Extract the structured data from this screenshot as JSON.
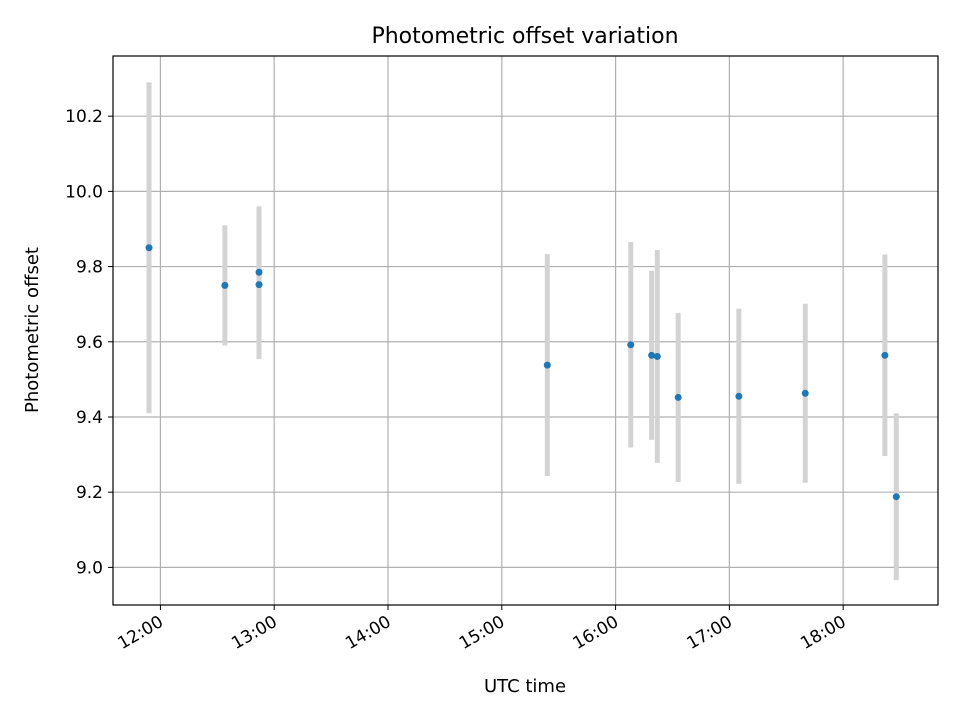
{
  "chart_data": {
    "type": "scatter",
    "title": "Photometric offset variation",
    "xlabel": "UTC time",
    "ylabel": "Photometric offset",
    "x_ticks": [
      "12:00",
      "13:00",
      "14:00",
      "15:00",
      "16:00",
      "17:00",
      "18:00"
    ],
    "y_ticks": [
      "9.0",
      "9.2",
      "9.4",
      "9.6",
      "9.8",
      "10.0",
      "10.2"
    ],
    "xlim": [
      "11:35",
      "18:50"
    ],
    "ylim": [
      8.9,
      10.36
    ],
    "grid": true,
    "colors": {
      "points": "#1f77b4",
      "errorbars": "#d3d3d3"
    },
    "points": [
      {
        "x": "11:54",
        "y": 9.85,
        "err": 0.44
      },
      {
        "x": "12:34",
        "y": 9.75,
        "err": 0.16
      },
      {
        "x": "12:52",
        "y": 9.785,
        "err": 0.175
      },
      {
        "x": "12:52",
        "y": 9.752,
        "err": 0.198
      },
      {
        "x": "15:24",
        "y": 9.538,
        "err": 0.295
      },
      {
        "x": "16:08",
        "y": 9.592,
        "err": 0.273
      },
      {
        "x": "16:19",
        "y": 9.564,
        "err": 0.225
      },
      {
        "x": "16:22",
        "y": 9.561,
        "err": 0.283
      },
      {
        "x": "16:33",
        "y": 9.452,
        "err": 0.225
      },
      {
        "x": "17:05",
        "y": 9.455,
        "err": 0.233
      },
      {
        "x": "17:40",
        "y": 9.463,
        "err": 0.238
      },
      {
        "x": "18:22",
        "y": 9.564,
        "err": 0.268
      },
      {
        "x": "18:28",
        "y": 9.188,
        "err": 0.222
      }
    ]
  }
}
